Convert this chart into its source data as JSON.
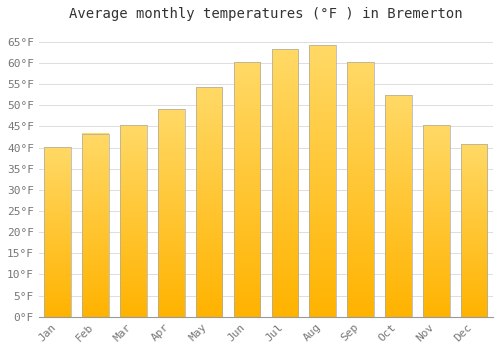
{
  "title": "Average monthly temperatures (°F ) in Bremerton",
  "months": [
    "Jan",
    "Feb",
    "Mar",
    "Apr",
    "May",
    "Jun",
    "Jul",
    "Aug",
    "Sep",
    "Oct",
    "Nov",
    "Dec"
  ],
  "values": [
    40.1,
    43.3,
    45.3,
    49.1,
    54.3,
    60.1,
    63.3,
    64.2,
    60.1,
    52.3,
    45.3,
    40.8
  ],
  "bar_color_bottom": "#FFB300",
  "bar_color_top": "#FFD966",
  "bar_edge_color": "#AAAAAA",
  "ylim": [
    0,
    68
  ],
  "yticks": [
    0,
    5,
    10,
    15,
    20,
    25,
    30,
    35,
    40,
    45,
    50,
    55,
    60,
    65
  ],
  "ytick_labels": [
    "0°F",
    "5°F",
    "10°F",
    "15°F",
    "20°F",
    "25°F",
    "30°F",
    "35°F",
    "40°F",
    "45°F",
    "50°F",
    "55°F",
    "60°F",
    "65°F"
  ],
  "background_color": "#FFFFFF",
  "grid_color": "#DDDDDD",
  "title_fontsize": 10,
  "tick_fontsize": 8,
  "bar_width": 0.7
}
